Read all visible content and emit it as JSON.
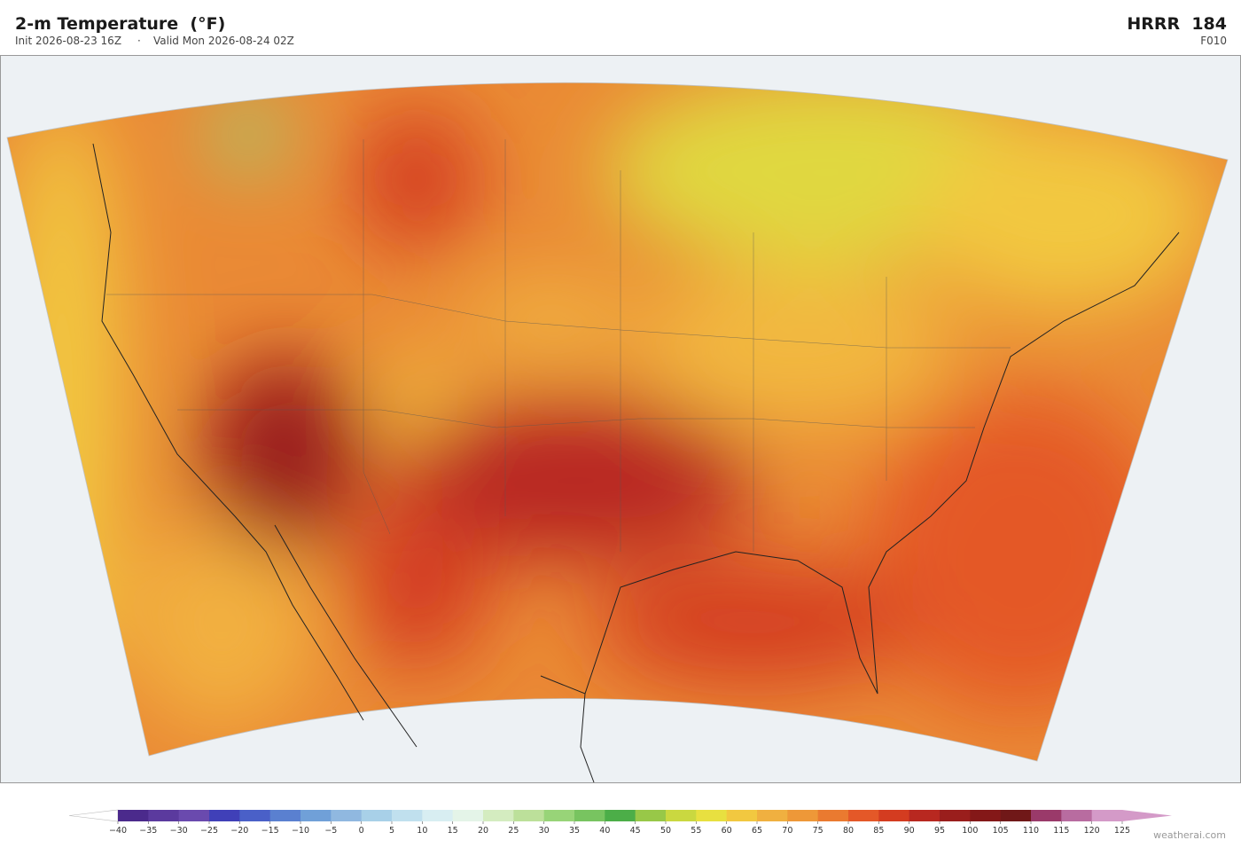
{
  "header": {
    "title": "2-m Temperature  (°F)",
    "init": "Init 2026-08-23 16Z",
    "separator": "·",
    "valid": "Valid Mon 2026-08-24 02Z",
    "model": "HRRR  184",
    "forecast_hour": "F010"
  },
  "colorbar": {
    "ticks": [
      {
        "value": -40,
        "label": "−40"
      },
      {
        "value": -35,
        "label": "−35"
      },
      {
        "value": -30,
        "label": "−30"
      },
      {
        "value": -25,
        "label": "−25"
      },
      {
        "value": -20,
        "label": "−20"
      },
      {
        "value": -15,
        "label": "−15"
      },
      {
        "value": -10,
        "label": "−10"
      },
      {
        "value": -5,
        "label": "−5"
      },
      0,
      5,
      10,
      15,
      20,
      25,
      30,
      35,
      40,
      45,
      50,
      55,
      60,
      65,
      70,
      75,
      80,
      85,
      90,
      95,
      100,
      105,
      110,
      115,
      120,
      125
    ],
    "colors": [
      "#4b2a8c",
      "#5b3a9e",
      "#6a4aae",
      "#4040b8",
      "#4a60c8",
      "#5a80d0",
      "#70a0d8",
      "#90b8e0",
      "#a8d0e8",
      "#c0e0ee",
      "#d8eef2",
      "#e4f4e8",
      "#d4ecc0",
      "#bce09a",
      "#98d478",
      "#78c460",
      "#4cae48",
      "#98c848",
      "#cad840",
      "#e8e040",
      "#f2c840",
      "#f0b040",
      "#ee9838",
      "#ea7a30",
      "#e45828",
      "#d43c20",
      "#b82820",
      "#9a1e1c",
      "#841818",
      "#701818",
      "#9a3a6a",
      "#b86ca0",
      "#d49ac8"
    ],
    "under_color": "#ffffff",
    "over_color": "#d49ac8"
  },
  "credit": "weatherai.com"
}
